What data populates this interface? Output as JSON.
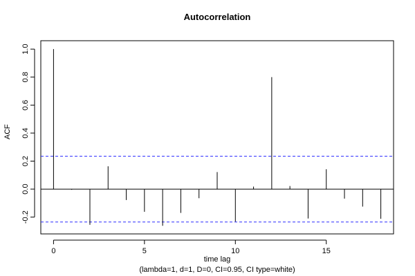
{
  "chart_data": {
    "type": "bar",
    "title": "Autocorrelation",
    "xlabel": "time lag",
    "subtitle": "(lambda=1, d=1, D=0, CI=0.95, CI type=white)",
    "ylabel": "ACF",
    "xlim": [
      -0.7,
      18.7
    ],
    "ylim": [
      -0.32,
      1.06
    ],
    "x_ticks": [
      0,
      5,
      10,
      15
    ],
    "y_ticks": [
      -0.2,
      0.0,
      0.2,
      0.4,
      0.6,
      0.8,
      1.0
    ],
    "x_tick_labels": [
      "0",
      "5",
      "10",
      "15"
    ],
    "y_tick_labels": [
      "-0.2",
      "0.0",
      "0.2",
      "0.4",
      "0.6",
      "0.8",
      "1.0"
    ],
    "x": [
      0,
      1,
      2,
      3,
      4,
      5,
      6,
      7,
      8,
      9,
      10,
      11,
      12,
      13,
      14,
      15,
      16,
      17,
      18
    ],
    "values": [
      1.0,
      -0.005,
      -0.255,
      0.163,
      -0.078,
      -0.162,
      -0.262,
      -0.17,
      -0.065,
      0.122,
      -0.232,
      0.018,
      0.8,
      0.022,
      -0.21,
      0.142,
      -0.068,
      -0.125,
      -0.212
    ],
    "ci": {
      "upper": 0.235,
      "lower": -0.235
    },
    "ci_color": "#2b2bff",
    "zero_line": true
  }
}
